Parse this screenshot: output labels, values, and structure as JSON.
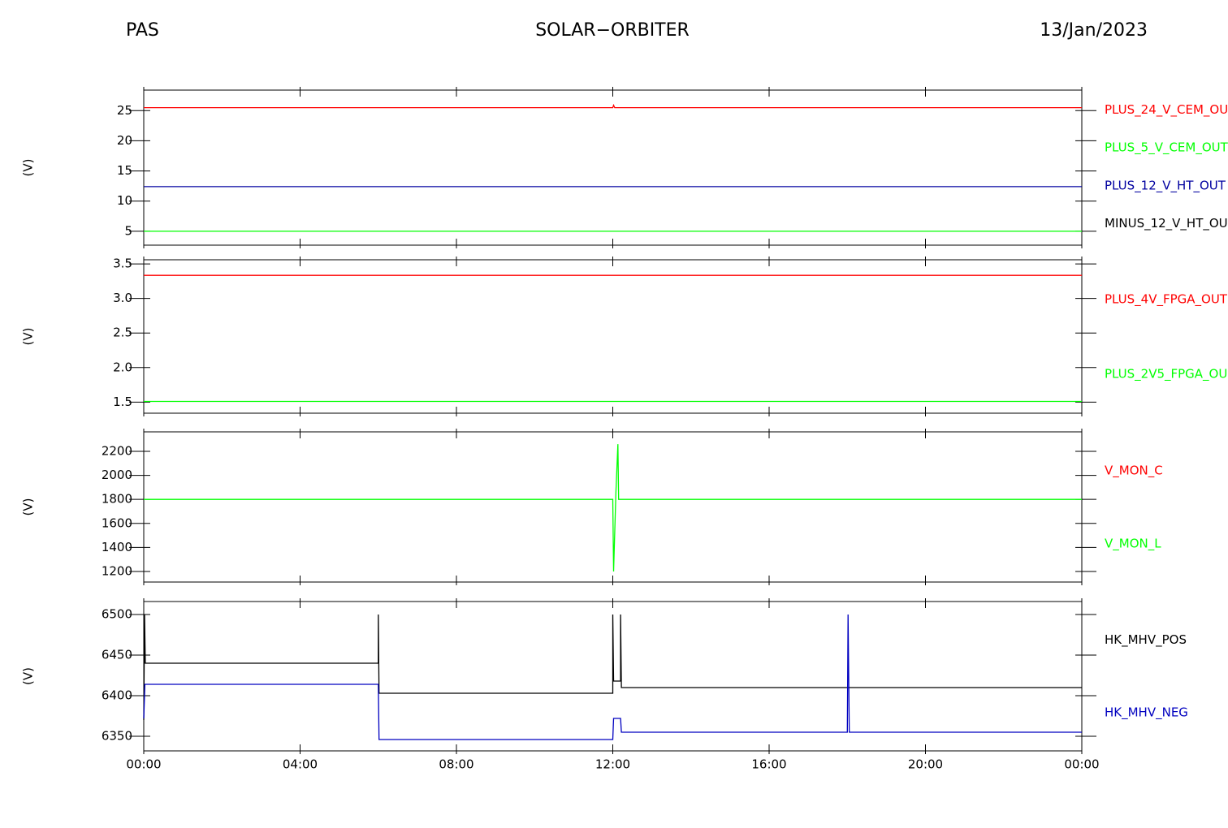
{
  "header": {
    "left": "PAS",
    "center": "SOLAR−ORBITER",
    "right": "13/Jan/2023"
  },
  "chart_data": [
    {
      "type": "line",
      "ylabel": "(V)",
      "xlim": [
        0,
        24
      ],
      "ylim": [
        2.7,
        28.4
      ],
      "yticks": [
        5,
        10,
        15,
        20,
        25
      ],
      "series": [
        {
          "name": "PLUS_24_V_CEM_OU",
          "color": "#ff0000",
          "x": [
            0,
            12,
            12.02,
            12.05,
            24
          ],
          "values": [
            25.5,
            25.5,
            25.9,
            25.5,
            25.5
          ]
        },
        {
          "name": "PLUS_5_V_CEM_OUT",
          "color": "#00ff00",
          "x": [
            0,
            24
          ],
          "values": [
            5.0,
            5.0
          ]
        },
        {
          "name": "PLUS_12_V_HT_OUT",
          "color": "#0000a0",
          "x": [
            0,
            24
          ],
          "values": [
            12.4,
            12.4
          ]
        },
        {
          "name": "MINUS_12_V_HT_OU",
          "color": "#000000",
          "x": [
            0,
            24
          ],
          "values": [
            null,
            null
          ]
        }
      ]
    },
    {
      "type": "line",
      "ylabel": "(V)",
      "xlim": [
        0,
        24
      ],
      "ylim": [
        1.34,
        3.56
      ],
      "yticks": [
        1.5,
        {
          "value": 2,
          "label": "2.0"
        },
        2.5,
        {
          "value": 3,
          "label": "3.0"
        },
        3.5
      ],
      "series": [
        {
          "name": "PLUS_4V_FPGA_OUT",
          "color": "#ff0000",
          "x": [
            0,
            24
          ],
          "values": [
            3.335,
            3.335
          ]
        },
        {
          "name": "PLUS_2V5_FPGA_OU",
          "color": "#00ff00",
          "x": [
            0,
            24
          ],
          "values": [
            1.51,
            1.51
          ]
        }
      ]
    },
    {
      "type": "line",
      "ylabel": "(V)",
      "xlim": [
        0,
        24
      ],
      "ylim": [
        1112,
        2362
      ],
      "yticks": [
        1200,
        1400,
        1600,
        1800,
        2000,
        2200
      ],
      "series": [
        {
          "name": "V_MON_C",
          "color": "#ff0000",
          "x": [
            0,
            24
          ],
          "values": [
            null,
            null
          ]
        },
        {
          "name": "V_MON_L",
          "color": "#00ff00",
          "x": [
            0,
            12.0,
            12.02,
            12.08,
            12.13,
            12.15,
            24
          ],
          "values": [
            1800,
            1800,
            1200,
            1850,
            2260,
            1800,
            1800
          ]
        }
      ]
    },
    {
      "type": "line",
      "ylabel": "(V)",
      "xlim": [
        0,
        24
      ],
      "ylim": [
        6332,
        6516
      ],
      "yticks": [
        6350,
        6400,
        6450,
        6500
      ],
      "xticks": [
        {
          "value": 0,
          "label": "00:00"
        },
        {
          "value": 4,
          "label": "04:00"
        },
        {
          "value": 8,
          "label": "08:00"
        },
        {
          "value": 12,
          "label": "12:00"
        },
        {
          "value": 16,
          "label": "16:00"
        },
        {
          "value": 20,
          "label": "20:00"
        },
        {
          "value": 24,
          "label": "00:00"
        }
      ],
      "series": [
        {
          "name": "HK_MHV_POS",
          "color": "#000000",
          "x": [
            0,
            0.02,
            0.04,
            6.0,
            6.0,
            6.02,
            12.0,
            12.0,
            12.02,
            12.2,
            12.2,
            12.22,
            24
          ],
          "values": [
            6370,
            6500,
            6440,
            6440,
            6500,
            6403,
            6403,
            6500,
            6418,
            6418,
            6500,
            6410,
            6410
          ]
        },
        {
          "name": "HK_MHV_NEG",
          "color": "#0000c0",
          "x": [
            0,
            0.03,
            6.0,
            6.02,
            12.0,
            12.02,
            12.2,
            12.22,
            18.0,
            18.02,
            18.05,
            24
          ],
          "values": [
            6372,
            6414,
            6414,
            6346,
            6346,
            6372,
            6372,
            6355,
            6355,
            6500,
            6355,
            6355
          ]
        }
      ]
    }
  ]
}
